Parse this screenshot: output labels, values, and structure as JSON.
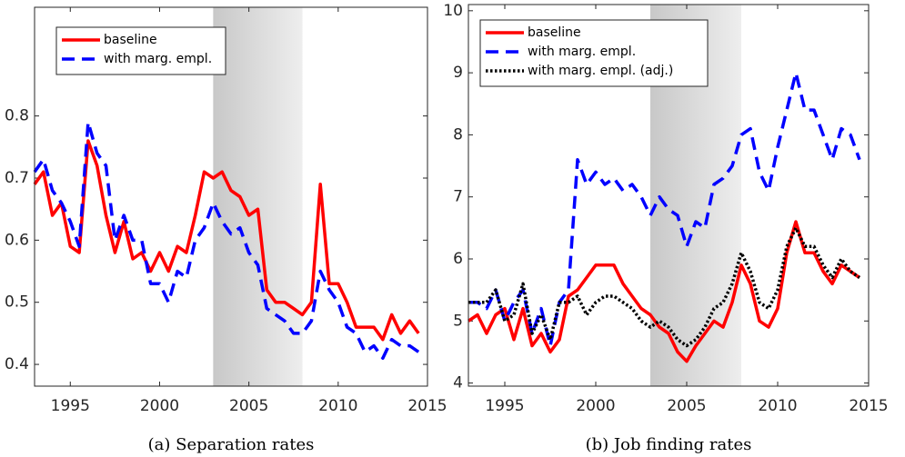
{
  "chart_data": [
    {
      "type": "line",
      "caption": "(a) Separation rates",
      "x": [
        1993,
        1993.5,
        1994,
        1994.5,
        1995,
        1995.5,
        1996,
        1996.5,
        1997,
        1997.5,
        1998,
        1998.5,
        1999,
        1999.5,
        2000,
        2000.5,
        2001,
        2001.5,
        2002,
        2002.5,
        2003,
        2003.5,
        2004,
        2004.5,
        2005,
        2005.5,
        2006,
        2006.5,
        2007,
        2007.5,
        2008,
        2008.5,
        2009,
        2009.5,
        2010,
        2010.5,
        2011,
        2011.5,
        2012,
        2012.5,
        2013,
        2013.5,
        2014,
        2014.5
      ],
      "series": [
        {
          "name": "baseline",
          "color": "#ff0000",
          "style": "solid",
          "values": [
            0.69,
            0.71,
            0.64,
            0.66,
            0.59,
            0.58,
            0.76,
            0.72,
            0.64,
            0.58,
            0.63,
            0.57,
            0.58,
            0.55,
            0.58,
            0.55,
            0.59,
            0.58,
            0.64,
            0.71,
            0.7,
            0.71,
            0.68,
            0.67,
            0.64,
            0.65,
            0.52,
            0.5,
            0.5,
            0.49,
            0.48,
            0.5,
            0.69,
            0.53,
            0.53,
            0.5,
            0.46,
            0.46,
            0.46,
            0.44,
            0.48,
            0.45,
            0.47,
            0.45
          ]
        },
        {
          "name": "with marg. empl.",
          "color": "#0000ff",
          "style": "dashed",
          "values": [
            0.71,
            0.73,
            0.68,
            0.66,
            0.63,
            0.59,
            0.79,
            0.74,
            0.72,
            0.6,
            0.64,
            0.6,
            0.6,
            0.53,
            0.53,
            0.5,
            0.55,
            0.54,
            0.6,
            0.62,
            0.66,
            0.63,
            0.61,
            0.62,
            0.58,
            0.56,
            0.49,
            0.48,
            0.47,
            0.45,
            0.45,
            0.47,
            0.55,
            0.52,
            0.5,
            0.46,
            0.45,
            0.42,
            0.43,
            0.41,
            0.44,
            0.43,
            0.43,
            0.42
          ]
        }
      ],
      "shaded_region": [
        2003,
        2008
      ],
      "xlim": [
        1993,
        2015
      ],
      "xticks": [
        1995,
        2000,
        2005,
        2010,
        2015
      ],
      "ylim": [
        0.365,
        0.975
      ],
      "yticks": [
        0.4,
        0.5,
        0.6,
        0.7,
        0.8
      ],
      "legend": "upper left"
    },
    {
      "type": "line",
      "caption": "(b) Job finding rates",
      "x": [
        1993,
        1993.5,
        1994,
        1994.5,
        1995,
        1995.5,
        1996,
        1996.5,
        1997,
        1997.5,
        1998,
        1998.5,
        1999,
        1999.5,
        2000,
        2000.5,
        2001,
        2001.5,
        2002,
        2002.5,
        2003,
        2003.5,
        2004,
        2004.5,
        2005,
        2005.5,
        2006,
        2006.5,
        2007,
        2007.5,
        2008,
        2008.5,
        2009,
        2009.5,
        2010,
        2010.5,
        2011,
        2011.5,
        2012,
        2012.5,
        2013,
        2013.5,
        2014,
        2014.5
      ],
      "series": [
        {
          "name": "baseline",
          "color": "#ff0000",
          "style": "solid",
          "values": [
            5.0,
            5.1,
            4.8,
            5.1,
            5.2,
            4.7,
            5.2,
            4.6,
            4.8,
            4.5,
            4.7,
            5.4,
            5.5,
            5.7,
            5.9,
            5.9,
            5.9,
            5.6,
            5.4,
            5.2,
            5.1,
            4.9,
            4.8,
            4.5,
            4.35,
            4.6,
            4.8,
            5.0,
            4.9,
            5.3,
            5.9,
            5.6,
            5.0,
            4.9,
            5.2,
            6.1,
            6.6,
            6.1,
            6.1,
            5.8,
            5.6,
            5.9,
            5.8,
            5.7
          ]
        },
        {
          "name": "with marg. empl.",
          "color": "#0000ff",
          "style": "dashed",
          "values": [
            5.3,
            5.3,
            5.2,
            5.5,
            5.0,
            5.3,
            5.5,
            4.8,
            5.2,
            4.6,
            5.3,
            5.5,
            7.6,
            7.2,
            7.4,
            7.2,
            7.3,
            7.1,
            7.2,
            7.0,
            6.7,
            7.0,
            6.8,
            6.7,
            6.2,
            6.6,
            6.5,
            7.2,
            7.3,
            7.5,
            8.0,
            8.1,
            7.4,
            7.1,
            7.8,
            8.4,
            9.0,
            8.4,
            8.4,
            8.0,
            7.6,
            8.1,
            8.0,
            7.6
          ]
        },
        {
          "name": "with marg. empl. (adj.)",
          "color": "#000000",
          "style": "dotted",
          "values": [
            5.3,
            5.3,
            5.3,
            5.5,
            5.0,
            5.1,
            5.6,
            4.8,
            5.1,
            4.7,
            5.3,
            5.3,
            5.4,
            5.1,
            5.3,
            5.4,
            5.4,
            5.3,
            5.2,
            5.0,
            4.9,
            5.0,
            4.9,
            4.7,
            4.6,
            4.7,
            4.9,
            5.2,
            5.3,
            5.6,
            6.1,
            5.8,
            5.3,
            5.2,
            5.5,
            6.2,
            6.5,
            6.2,
            6.2,
            5.9,
            5.7,
            6.0,
            5.8,
            5.7
          ]
        }
      ],
      "shaded_region": [
        2003,
        2008
      ],
      "xlim": [
        1993,
        2015
      ],
      "xticks": [
        1995,
        2000,
        2005,
        2010,
        2015
      ],
      "ylim": [
        3.95,
        10.1
      ],
      "yticks": [
        4,
        5,
        6,
        7,
        8,
        9,
        10
      ],
      "legend": "upper left"
    }
  ]
}
